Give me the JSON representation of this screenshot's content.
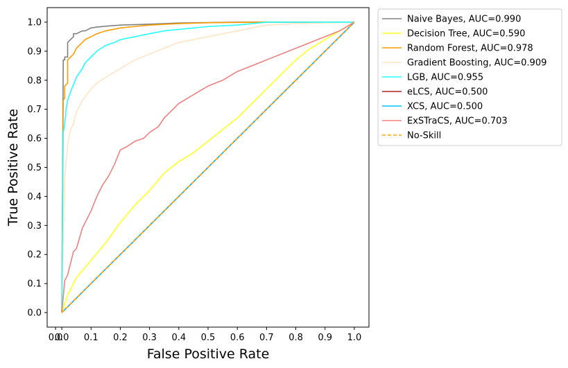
{
  "chart_data": {
    "type": "line",
    "xlabel": "False Positive Rate",
    "ylabel": "True Positive Rate",
    "xlim": [
      -0.05,
      1.05
    ],
    "ylim": [
      -0.05,
      1.05
    ],
    "xticks": [
      "0.0",
      "0.1",
      "0.2",
      "0.3",
      "0.4",
      "0.5",
      "0.6",
      "0.7",
      "0.8",
      "0.9",
      "1.0"
    ],
    "yticks": [
      "0.0",
      "0.1",
      "0.2",
      "0.3",
      "0.4",
      "0.5",
      "0.6",
      "0.7",
      "0.8",
      "0.9",
      "1.0"
    ],
    "extra_xticks": [
      "0.0"
    ],
    "grid": false,
    "legend_position": "outside-upper-right",
    "series": [
      {
        "name": "Naive Bayes, AUC=0.990",
        "color": "#808080",
        "style": "solid",
        "x": [
          0,
          0.005,
          0.01,
          0.01,
          0.02,
          0.02,
          0.03,
          0.04,
          0.04,
          0.05,
          0.07,
          0.08,
          0.09,
          0.1,
          0.12,
          0.15,
          0.2,
          0.3,
          0.4,
          0.6,
          1.0
        ],
        "y": [
          0,
          0.87,
          0.87,
          0.88,
          0.88,
          0.93,
          0.94,
          0.95,
          0.96,
          0.96,
          0.97,
          0.97,
          0.975,
          0.98,
          0.983,
          0.986,
          0.99,
          0.993,
          0.997,
          1.0,
          1.0
        ]
      },
      {
        "name": "Decision Tree, AUC=0.590",
        "color": "#ffff22",
        "style": "solid",
        "x": [
          0,
          0.02,
          0.05,
          0.1,
          0.15,
          0.2,
          0.25,
          0.3,
          0.35,
          0.4,
          0.45,
          0.5,
          0.55,
          0.6,
          0.65,
          0.7,
          0.75,
          0.8,
          0.85,
          0.9,
          0.95,
          1.0
        ],
        "y": [
          0,
          0.06,
          0.12,
          0.18,
          0.24,
          0.31,
          0.37,
          0.42,
          0.48,
          0.52,
          0.55,
          0.59,
          0.63,
          0.67,
          0.72,
          0.77,
          0.82,
          0.87,
          0.91,
          0.94,
          0.97,
          1.0
        ]
      },
      {
        "name": "Random Forest, AUC=0.978",
        "color": "#ff9c00",
        "style": "solid",
        "x": [
          0,
          0.005,
          0.01,
          0.01,
          0.02,
          0.02,
          0.03,
          0.04,
          0.05,
          0.07,
          0.08,
          0.1,
          0.12,
          0.15,
          0.2,
          0.25,
          0.3,
          0.4,
          0.5,
          0.7,
          1.0
        ],
        "y": [
          0,
          0.73,
          0.74,
          0.78,
          0.79,
          0.87,
          0.88,
          0.89,
          0.91,
          0.93,
          0.94,
          0.95,
          0.96,
          0.97,
          0.98,
          0.985,
          0.99,
          0.995,
          0.998,
          1.0,
          1.0
        ]
      },
      {
        "name": "Gradient Boosting, AUC=0.909",
        "color": "#ffe4c4",
        "style": "solid",
        "x": [
          0,
          0.01,
          0.015,
          0.02,
          0.03,
          0.04,
          0.05,
          0.07,
          0.1,
          0.12,
          0.15,
          0.2,
          0.25,
          0.3,
          0.35,
          0.4,
          0.45,
          0.5,
          0.55,
          0.6,
          0.65,
          0.7,
          0.8,
          1.0
        ],
        "y": [
          0,
          0.47,
          0.52,
          0.58,
          0.63,
          0.65,
          0.69,
          0.73,
          0.77,
          0.79,
          0.81,
          0.84,
          0.87,
          0.89,
          0.91,
          0.93,
          0.94,
          0.95,
          0.96,
          0.97,
          0.98,
          0.99,
          0.995,
          1.0
        ]
      },
      {
        "name": "LGB, AUC=0.955",
        "color": "#22ffff",
        "style": "solid",
        "x": [
          0,
          0.005,
          0.01,
          0.015,
          0.02,
          0.03,
          0.05,
          0.07,
          0.08,
          0.1,
          0.12,
          0.15,
          0.18,
          0.2,
          0.25,
          0.3,
          0.35,
          0.4,
          0.5,
          0.6,
          0.7,
          1.0
        ],
        "y": [
          0,
          0.62,
          0.65,
          0.7,
          0.73,
          0.76,
          0.81,
          0.84,
          0.86,
          0.88,
          0.9,
          0.92,
          0.93,
          0.94,
          0.95,
          0.96,
          0.97,
          0.975,
          0.985,
          0.99,
          1.0,
          1.0
        ]
      },
      {
        "name": "eLCS, AUC=0.500",
        "color": "#b22222",
        "style": "solid",
        "x": [
          0,
          1.0
        ],
        "y": [
          0,
          1.0
        ]
      },
      {
        "name": "XCS, AUC=0.500",
        "color": "#00bfff",
        "style": "solid",
        "x": [
          0,
          1.0
        ],
        "y": [
          0,
          1.0
        ]
      },
      {
        "name": "ExSTraCS, AUC=0.703",
        "color": "#f08080",
        "style": "solid",
        "x": [
          0,
          0.01,
          0.02,
          0.03,
          0.04,
          0.05,
          0.07,
          0.08,
          0.1,
          0.12,
          0.14,
          0.16,
          0.18,
          0.2,
          0.22,
          0.25,
          0.28,
          0.3,
          0.33,
          0.35,
          0.4,
          0.45,
          0.5,
          0.55,
          0.6,
          0.65,
          0.7,
          0.75,
          0.8,
          0.85,
          0.9,
          0.95,
          1.0
        ],
        "y": [
          0,
          0.11,
          0.13,
          0.17,
          0.21,
          0.22,
          0.29,
          0.31,
          0.35,
          0.4,
          0.44,
          0.47,
          0.51,
          0.56,
          0.57,
          0.59,
          0.6,
          0.62,
          0.64,
          0.67,
          0.72,
          0.75,
          0.78,
          0.8,
          0.83,
          0.85,
          0.87,
          0.89,
          0.91,
          0.93,
          0.95,
          0.97,
          1.0
        ]
      },
      {
        "name": "No-Skill",
        "color": "#ffa500",
        "style": "dashed",
        "x": [
          0,
          1.0
        ],
        "y": [
          0,
          1.0
        ]
      }
    ]
  }
}
